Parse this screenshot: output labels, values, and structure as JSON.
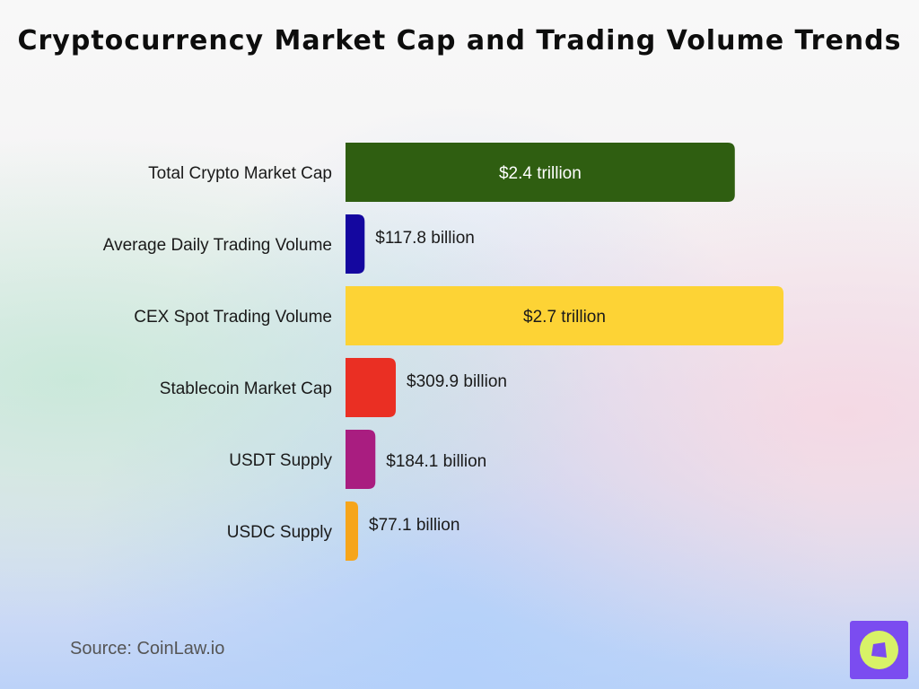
{
  "title": "Cryptocurrency Market Cap and Trading Volume Trends",
  "source": "Source: CoinLaw.io",
  "colors": {
    "logo_bg": "#7b4cf0",
    "logo_accent": "#d8f267"
  },
  "chart_data": {
    "type": "bar",
    "orientation": "horizontal",
    "unit": "USD billion",
    "categories": [
      "Total Crypto Market Cap",
      "Average Daily Trading Volume",
      "CEX Spot Trading Volume",
      "Stablecoin Market Cap",
      "USDT Supply",
      "USDC Supply"
    ],
    "values": [
      2400,
      117.8,
      2700,
      309.9,
      184.1,
      77.1
    ],
    "data_labels": [
      "$2.4 trillion",
      "$117.8 billion",
      "$2.7 trillion",
      "$309.9 billion",
      "$184.1 billion",
      "$77.1 billion"
    ],
    "bar_colors": [
      "#2f5e11",
      "#14079f",
      "#fdd335",
      "#ea2f23",
      "#a91d80",
      "#f6a51b"
    ],
    "label_inside": [
      true,
      false,
      true,
      false,
      false,
      false
    ],
    "xlim": [
      0,
      2700
    ],
    "grid": false,
    "legend": "none"
  }
}
